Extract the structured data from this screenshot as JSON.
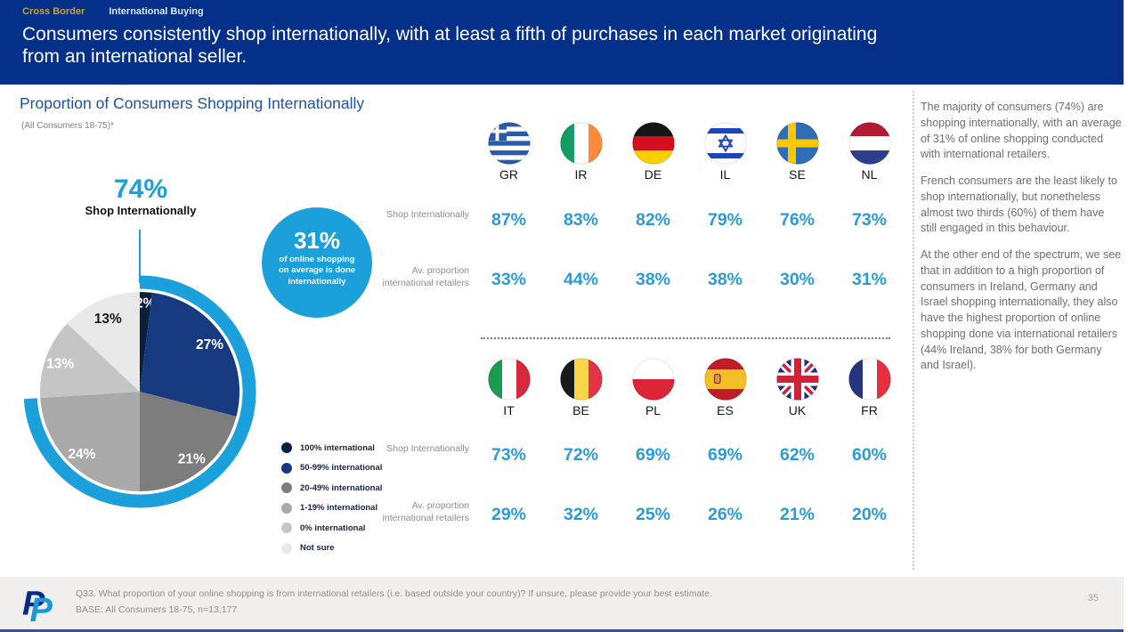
{
  "header": {
    "eyebrow": {
      "section": "Cross Border",
      "topic": "International Buying"
    },
    "title": "Consumers consistently shop internationally, with at least a fifth of purchases in each market originating from an international seller."
  },
  "main": {
    "section_title": "Proportion of Consumers Shopping Internationally",
    "section_subtitle": "(All Consumers 18-75)*"
  },
  "chart_data": [
    {
      "type": "pie",
      "title": "Proportion of Consumers Shopping Internationally",
      "labels": [
        "100% international",
        "50-99% international",
        "20-49% international",
        "1-19% international",
        "0% international",
        "Not sure"
      ],
      "values": [
        2,
        27,
        21,
        24,
        13,
        13
      ],
      "colors": [
        "#0b1f3e",
        "#16397f",
        "#7d7d7d",
        "#a9a9a9",
        "#c5c5c5",
        "#e9e9e9"
      ],
      "label_colors": [
        "#ffffff",
        "#ffffff",
        "#ffffff",
        "#ffffff",
        "#ffffff",
        "#1a1a1a"
      ],
      "highlight": {
        "value": 74,
        "display": "74%",
        "label": "Shop Internationally",
        "color": "#1ba0dc"
      },
      "annotation": {
        "value": "31%",
        "label": "of online shopping on average is done internationally"
      },
      "legend_position": "bottom-left"
    },
    {
      "type": "table",
      "row_labels": {
        "shop": "Shop Internationally",
        "avg": "Av. proportion international retailers"
      },
      "groups": [
        {
          "countries": [
            "GR",
            "IR",
            "DE",
            "IL",
            "SE",
            "NL"
          ],
          "shop_internationally": [
            87,
            83,
            82,
            79,
            76,
            73
          ],
          "avg_proportion_international_retailers": [
            33,
            44,
            38,
            38,
            30,
            31
          ]
        },
        {
          "countries": [
            "IT",
            "BE",
            "PL",
            "ES",
            "UK",
            "FR"
          ],
          "shop_internationally": [
            73,
            72,
            69,
            69,
            62,
            60
          ],
          "avg_proportion_international_retailers": [
            29,
            32,
            25,
            26,
            21,
            20
          ]
        }
      ]
    }
  ],
  "sidebar": {
    "paragraphs": [
      "The majority of consumers (74%) are shopping internationally, with an average of 31% of online shopping conducted with international retailers.",
      "French consumers are the least likely to shop internationally, but nonetheless almost two thirds (60%) of them have still engaged in this behaviour.",
      "At the other end of the spectrum, we see that in addition to a high proportion of consumers in Ireland, Germany and Israel shopping internationally, they also have the highest proportion of online shopping done via international retailers (44% Ireland, 38% for both Germany and Israel)."
    ]
  },
  "footer": {
    "question": "Q33. What proportion of your online shopping is from international retailers (i.e. based outside your country)? If unsure, please provide your best estimate.",
    "base": "BASE: All Consumers 18-75, n=13,177",
    "page_number": "35",
    "logo": "paypal-logo"
  },
  "colors": {
    "header_blue": "#04308a",
    "accent_cyan": "#1ba0dc",
    "value_blue": "#2b9bd7",
    "gold": "#c9a233"
  }
}
